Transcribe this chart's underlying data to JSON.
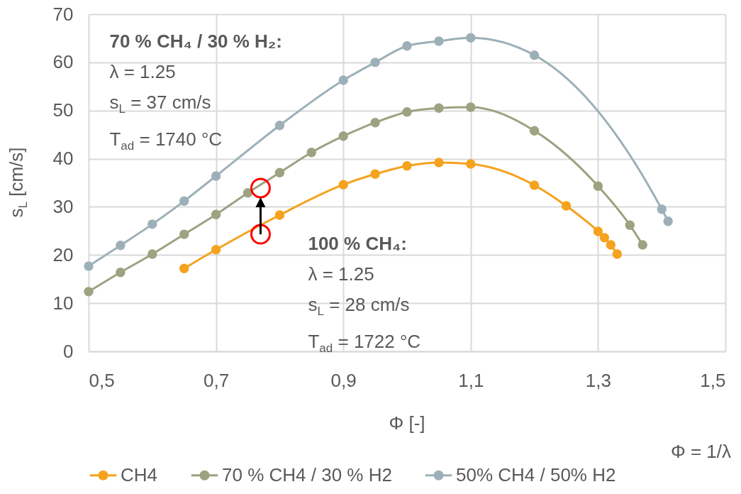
{
  "chart_data": {
    "type": "line",
    "xlabel": "Φ [-]",
    "ylabel": "s$_{L}$ [cm/s]",
    "xlim": [
      0.5,
      1.5
    ],
    "xticks": [
      {
        "value": 0.5,
        "label": "0,5"
      },
      {
        "value": 0.7,
        "label": "0,7"
      },
      {
        "value": 0.9,
        "label": "0,9"
      },
      {
        "value": 1.1,
        "label": "1,1"
      },
      {
        "value": 1.3,
        "label": "1,3"
      },
      {
        "value": 1.5,
        "label": "1,5"
      }
    ],
    "ylim": [
      0,
      70
    ],
    "yticks": [
      0,
      10,
      20,
      30,
      40,
      50,
      60,
      70
    ],
    "grid": true,
    "legend": "bottom",
    "marker": "circle",
    "line_style": "solid",
    "series": [
      {
        "name": "CH4",
        "color": "#f5a21e",
        "x": [
          0.65,
          0.7,
          0.8,
          0.9,
          0.95,
          1.0,
          1.05,
          1.1,
          1.2,
          1.25,
          1.3,
          1.31,
          1.32,
          1.33
        ],
        "values": [
          17.2,
          21.1,
          28.3,
          34.6,
          36.8,
          38.5,
          39.2,
          38.9,
          34.5,
          30.2,
          24.9,
          23.6,
          22.1,
          20.2
        ]
      },
      {
        "name": "70 % CH4 / 30 % H2",
        "color": "#9ba381",
        "x": [
          0.5,
          0.55,
          0.6,
          0.65,
          0.7,
          0.75,
          0.8,
          0.85,
          0.9,
          0.95,
          1.0,
          1.05,
          1.1,
          1.2,
          1.3,
          1.35,
          1.37
        ],
        "values": [
          12.4,
          16.4,
          20.2,
          24.3,
          28.4,
          32.9,
          37.1,
          41.3,
          44.7,
          47.5,
          49.7,
          50.5,
          50.7,
          45.8,
          34.3,
          26.2,
          22.1
        ]
      },
      {
        "name": "50% CH4 / 50% H2",
        "color": "#9db0b8",
        "x": [
          0.5,
          0.55,
          0.6,
          0.65,
          0.7,
          0.8,
          0.9,
          0.95,
          1.0,
          1.05,
          1.1,
          1.2,
          1.4,
          1.41
        ],
        "values": [
          17.7,
          22.0,
          26.4,
          31.2,
          36.4,
          46.9,
          56.3,
          60.0,
          63.4,
          64.4,
          65.1,
          61.5,
          29.5,
          27.0
        ]
      }
    ],
    "annotations": [
      {
        "text": "70 % CH₄ / 30 % H₂:\nλ = 1.25\ns$_{L}$ = 37 cm/s\nT$_{ad}$ = 1740 °C",
        "x": 0.77,
        "y": 33.9
      },
      {
        "text": "100 % CH₄:\nλ = 1.25\ns$_{L}$ = 28 cm/s\nT$_{ad}$ = 1722 °C",
        "x": 0.77,
        "y": 24.3
      },
      "Φ = 1/λ"
    ]
  }
}
